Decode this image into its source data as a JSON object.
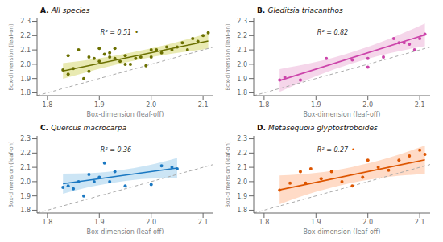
{
  "chart_data": [
    {
      "type": "scatter",
      "title": "A. All species",
      "xlabel": "Box-dimension (leaf-off)",
      "ylabel": "Box-dimension (leaf-on)",
      "xlim": [
        1.78,
        2.12
      ],
      "ylim": [
        1.78,
        2.32
      ],
      "xticks": [
        1.8,
        1.9,
        {
          "value": 2.0,
          "label": "2.0"
        },
        2.1
      ],
      "yticks": [
        1.8,
        1.9,
        {
          "value": 2.0,
          "label": "2.0"
        },
        2.1,
        2.2,
        2.3
      ],
      "annotations": [
        {
          "text": "R² = 0.51"
        },
        {
          "text": "•",
          "color": "#6b6b00"
        }
      ],
      "series": [
        {
          "type": "line",
          "line_style": "dashed",
          "color": "#aaaaaa",
          "x": [
            1.78,
            2.12
          ],
          "y": [
            1.78,
            2.12
          ]
        },
        {
          "type": "area",
          "color": "#b5b800",
          "x": [
            1.83,
            1.9,
            1.97,
            2.04,
            2.11
          ],
          "lower": [
            1.8975,
            1.96875,
            2.0275,
            2.07375,
            2.1075
          ],
          "upper": [
            2.0075,
            2.04125,
            2.0875,
            2.14625,
            2.2175
          ]
        },
        {
          "type": "line",
          "color": "#6b7000",
          "x": [
            1.83,
            2.11
          ],
          "y": [
            1.9525,
            2.1625
          ]
        },
        {
          "type": "scatter",
          "color": "#6b7000",
          "x": [
            1.83,
            1.84,
            1.84,
            1.85,
            1.86,
            1.87,
            1.88,
            1.88,
            1.89,
            1.9,
            1.9,
            1.91,
            1.92,
            1.92,
            1.93,
            1.93,
            1.94,
            1.95,
            1.95,
            1.96,
            1.97,
            1.98,
            1.99,
            2.0,
            2.0,
            2.01,
            2.02,
            2.03,
            2.04,
            2.05,
            2.06,
            2.07,
            2.08,
            2.09,
            2.1,
            2.11
          ],
          "y": [
            1.96,
            1.93,
            2.06,
            1.97,
            2.1,
            1.9,
            1.95,
            2.05,
            2.04,
            2.02,
            2.11,
            2.07,
            2.05,
            2.08,
            2.04,
            2.11,
            2.02,
            2.06,
            2.0,
            2.0,
            2.04,
            2.05,
            1.99,
            2.05,
            2.1,
            2.1,
            2.08,
            2.12,
            2.1,
            2.12,
            2.15,
            2.1,
            2.18,
            2.16,
            2.2,
            2.22
          ]
        }
      ]
    },
    {
      "type": "scatter",
      "title": "B. Gleditsia triacanthos",
      "xlabel": "Box-dimension (leaf-off)",
      "ylabel": "Box-dimension (leaf-on)",
      "xlim": [
        1.78,
        2.12
      ],
      "ylim": [
        1.78,
        2.32
      ],
      "xticks": [
        1.8,
        1.9,
        {
          "value": 2.0,
          "label": "2.0"
        },
        2.1
      ],
      "yticks": [
        1.8,
        1.9,
        {
          "value": 2.0,
          "label": "2.0"
        },
        2.1,
        2.2,
        2.3
      ],
      "annotations": [
        {
          "text": "R² = 0.82"
        }
      ],
      "series": [
        {
          "type": "line",
          "line_style": "dashed",
          "color": "#aaaaaa",
          "x": [
            1.78,
            2.12
          ],
          "y": [
            1.78,
            2.12
          ]
        },
        {
          "type": "area",
          "color": "#dd77bb",
          "x": [
            1.83,
            1.9,
            1.97,
            2.04,
            2.11
          ],
          "lower": [
            1.8062,
            1.916,
            2.0058,
            2.0756,
            2.1254
          ],
          "upper": [
            1.9662,
            2.016,
            2.0858,
            2.1756,
            2.2854
          ]
        },
        {
          "type": "line",
          "color": "#cc44aa",
          "x": [
            1.83,
            2.11
          ],
          "y": [
            1.8862,
            2.2054
          ]
        },
        {
          "type": "scatter",
          "color": "#cc44aa",
          "x": [
            1.83,
            1.84,
            1.87,
            1.92,
            1.97,
            2.0,
            2.0,
            2.03,
            2.05,
            2.06,
            2.07,
            2.08,
            2.09,
            2.1,
            2.11
          ],
          "y": [
            1.89,
            1.91,
            1.89,
            2.04,
            2.03,
            1.98,
            2.04,
            2.05,
            2.18,
            2.15,
            2.15,
            2.14,
            2.1,
            2.18,
            2.21
          ]
        }
      ]
    },
    {
      "type": "scatter",
      "title": "C. Quercus macrocarpa",
      "xlabel": "Box-dimension (leaf-off)",
      "ylabel": "Box-dimension (leaf-on)",
      "xlim": [
        1.78,
        2.12
      ],
      "ylim": [
        1.78,
        2.32
      ],
      "xticks": [
        1.8,
        1.9,
        {
          "value": 2.0,
          "label": "2.0"
        },
        2.1
      ],
      "yticks": [
        1.8,
        1.9,
        {
          "value": 2.0,
          "label": "2.0"
        },
        2.1,
        2.2,
        2.3
      ],
      "annotations": [
        {
          "text": "R² = 0.36"
        }
      ],
      "series": [
        {
          "type": "line",
          "line_style": "dashed",
          "color": "#aaaaaa",
          "x": [
            1.78,
            2.12
          ],
          "y": [
            1.78,
            2.12
          ]
        },
        {
          "type": "area",
          "color": "#55aadd",
          "x": [
            1.83,
            1.885,
            1.94,
            1.995,
            2.05
          ],
          "lower": [
            1.915,
            1.965,
            2.0,
            2.02,
            2.025
          ],
          "upper": [
            2.055,
            2.06,
            2.08,
            2.115,
            2.165
          ]
        },
        {
          "type": "line",
          "color": "#1a78c2",
          "x": [
            1.83,
            2.05
          ],
          "y": [
            1.985,
            2.095
          ]
        },
        {
          "type": "scatter",
          "color": "#1a78c2",
          "x": [
            1.83,
            1.84,
            1.85,
            1.86,
            1.87,
            1.88,
            1.89,
            1.9,
            1.91,
            1.92,
            1.93,
            1.95,
            2.0,
            2.02,
            2.04,
            2.05
          ],
          "y": [
            1.96,
            1.97,
            1.95,
            2.0,
            1.9,
            2.05,
            2.0,
            2.03,
            2.13,
            2.0,
            2.07,
            1.97,
            1.98,
            2.11,
            2.1,
            2.09
          ]
        }
      ]
    },
    {
      "type": "scatter",
      "title": "D. Metasequoia glyptostroboides",
      "xlabel": "Box-dimension (leaf-off)",
      "ylabel": "Box-dimension (leaf-on)",
      "xlim": [
        1.78,
        2.12
      ],
      "ylim": [
        1.78,
        2.32
      ],
      "xticks": [
        1.8,
        1.9,
        {
          "value": 2.0,
          "label": "2.0"
        },
        2.1
      ],
      "yticks": [
        1.8,
        1.9,
        {
          "value": 2.0,
          "label": "2.0"
        },
        2.1,
        2.2,
        2.3
      ],
      "annotations": [
        {
          "text": "R² = 0.27"
        },
        {
          "text": "•",
          "color": "#dd4400"
        }
      ],
      "series": [
        {
          "type": "line",
          "line_style": "dashed",
          "color": "#aaaaaa",
          "x": [
            1.78,
            2.12
          ],
          "y": [
            1.78,
            2.12
          ]
        },
        {
          "type": "area",
          "color": "#ff8844",
          "x": [
            1.83,
            1.9,
            1.97,
            2.04,
            2.11
          ],
          "lower": [
            1.8425,
            1.92875,
            1.9925,
            2.03375,
            2.0525
          ],
          "upper": [
            2.0425,
            2.06125,
            2.1025,
            2.16625,
            2.2525
          ]
        },
        {
          "type": "line",
          "color": "#dd5500",
          "x": [
            1.83,
            2.11
          ],
          "y": [
            1.9425,
            2.1525
          ]
        },
        {
          "type": "scatter",
          "color": "#dd5500",
          "x": [
            1.83,
            1.85,
            1.87,
            1.88,
            1.89,
            1.91,
            1.93,
            1.95,
            1.97,
            1.99,
            2.0,
            2.02,
            2.04,
            2.06,
            2.08,
            2.1,
            2.11
          ],
          "y": [
            1.94,
            1.99,
            2.07,
            1.99,
            2.09,
            2.02,
            2.07,
            2.0,
            1.97,
            2.03,
            2.15,
            2.1,
            2.08,
            2.15,
            2.18,
            2.22,
            2.19
          ]
        }
      ]
    }
  ]
}
